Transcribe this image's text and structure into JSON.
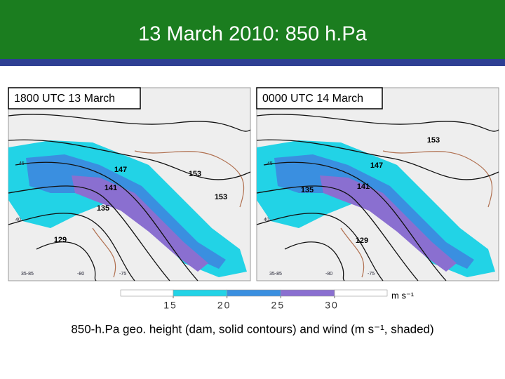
{
  "title": "13 March 2010: 850 h.Pa",
  "panels": [
    {
      "label": "1800 UTC 13 March",
      "contour_labels": [
        "147",
        "153",
        "141",
        "153",
        "135",
        "129"
      ],
      "lat_labels": [
        "45",
        "40"
      ],
      "lon_labels": [
        "35-85",
        "-80",
        "-75"
      ]
    },
    {
      "label": "0000 UTC 14 March",
      "contour_labels": [
        "153",
        "147",
        "141",
        "135",
        "129"
      ],
      "lat_labels": [
        "45",
        "40"
      ],
      "lon_labels": [
        "35-85",
        "-80",
        "-75"
      ]
    }
  ],
  "colorbar": {
    "ticks": [
      15,
      20,
      25,
      30
    ],
    "unit": "m s⁻¹",
    "colors": [
      "#ffffff",
      "#22d3e6",
      "#3a8fe0",
      "#8a6fd0",
      "#ffffff"
    ]
  },
  "caption": "850-h.Pa geo. height (dam, solid contours) and wind (m s⁻¹, shaded)"
}
